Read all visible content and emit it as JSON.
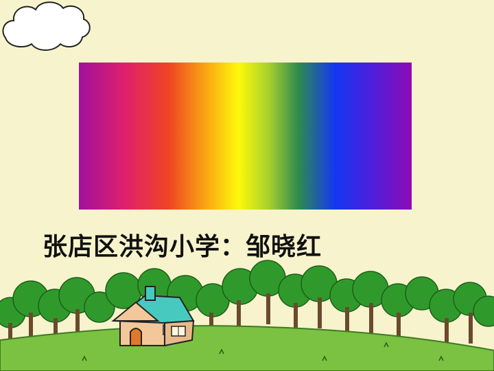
{
  "slide": {
    "title": "张店区洪沟小学：邹晓红"
  },
  "colors": {
    "background": "#f7f3cc",
    "grass": "#7bc142",
    "trees": "#2f9a2b",
    "house_roof": "#48c9c0",
    "house_wall": "#f2c79a",
    "house_door": "#e0772b"
  },
  "icons": {
    "cloud": "cloud-icon",
    "house": "house-icon"
  }
}
